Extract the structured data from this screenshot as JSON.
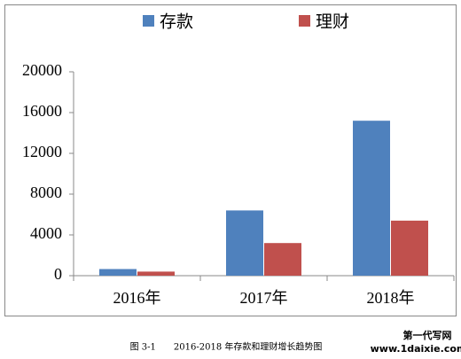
{
  "chart_data": {
    "type": "bar",
    "categories": [
      "2016年",
      "2017年",
      "2018年"
    ],
    "series": [
      {
        "name": "存款",
        "color": "#4f81bd",
        "values": [
          650,
          6400,
          15200
        ]
      },
      {
        "name": "理财",
        "color": "#c0504d",
        "values": [
          400,
          3200,
          5400
        ]
      }
    ],
    "ylim": [
      0,
      20000
    ],
    "yticks": [
      0,
      4000,
      8000,
      12000,
      16000,
      20000
    ],
    "grid": false,
    "legend": "top",
    "caption": "图 3-1　　2016-2018 年存款和理财增长趋势图"
  },
  "watermark": {
    "line1": "第一代写网",
    "line2": "www.1daixie.com"
  }
}
